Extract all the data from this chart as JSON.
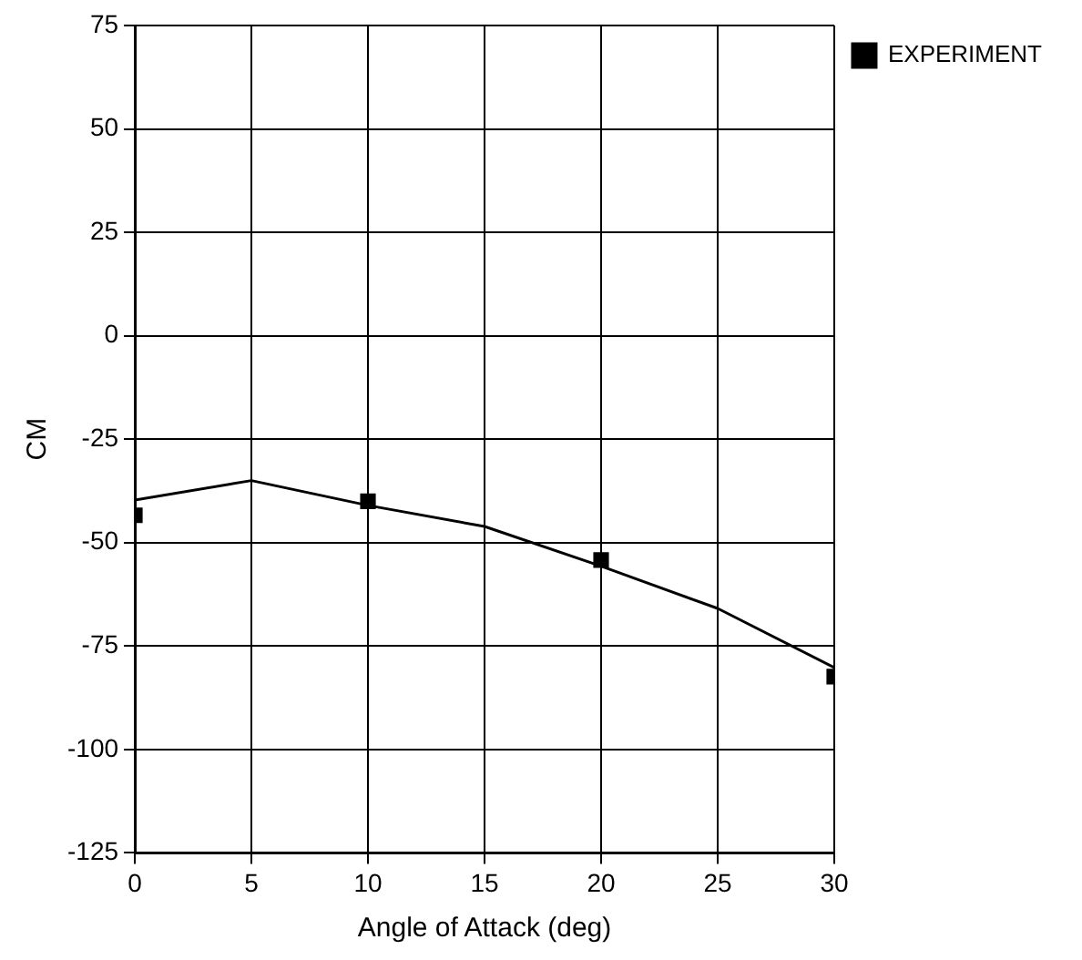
{
  "chart_data": {
    "type": "scatter",
    "xlabel": "Angle of Attack (deg)",
    "ylabel": "CM",
    "xlim": [
      0,
      30
    ],
    "xticks": [
      0,
      5,
      10,
      15,
      20,
      25,
      30
    ],
    "ylim": [
      -125,
      75
    ],
    "yticks": [
      -125,
      -100,
      -75,
      -50,
      -25,
      0,
      25,
      50,
      75
    ],
    "grid": true,
    "legend": "top right",
    "marker": "square",
    "series": [
      {
        "name": "EXPERIMENT",
        "color": "#000000",
        "x": [
          0,
          10,
          20,
          30
        ],
        "values": [
          -43.4,
          -40,
          -54.2,
          -82.4
        ]
      },
      {
        "type": "line",
        "color": "#000000",
        "marker": "none",
        "line_style": "solid",
        "x": [
          0,
          5,
          10,
          15,
          20,
          25,
          30
        ],
        "values": [
          -39.7,
          -35,
          -41,
          -46.1,
          -55.7,
          -65.9,
          -80.2
        ]
      }
    ]
  }
}
